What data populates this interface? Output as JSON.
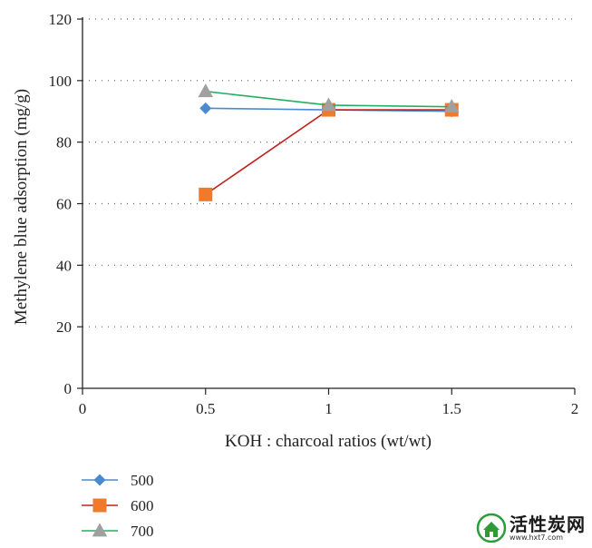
{
  "chart_data": {
    "type": "line",
    "title": "",
    "xlabel": "KOH : charcoal ratios (wt/wt)",
    "ylabel": "Methylene blue adsorption (mg/g)",
    "xlim": [
      0,
      2
    ],
    "ylim": [
      0,
      120
    ],
    "x_ticks": [
      "0",
      "0.5",
      "1",
      "1.5",
      "2"
    ],
    "y_ticks": [
      "0",
      "20",
      "40",
      "60",
      "80",
      "100",
      "120"
    ],
    "grid": "horizontal-dotted",
    "legend_position": "bottom-left",
    "x": [
      0.5,
      1,
      1.5
    ],
    "series": [
      {
        "name": "500",
        "values": [
          91,
          90.5,
          90
        ],
        "color": "#4a8bd0",
        "marker": "diamond"
      },
      {
        "name": "600",
        "values": [
          63,
          90.5,
          90.5
        ],
        "color": "#c42020",
        "marker_color": "#f07a2a",
        "marker": "square"
      },
      {
        "name": "700",
        "values": [
          96.5,
          92,
          91.5
        ],
        "color": "#22b060",
        "marker_color": "#a0a0a0",
        "marker": "triangle"
      }
    ]
  },
  "watermark": {
    "text": "活性炭网",
    "url": "www.hxt7.com",
    "logo": "house-leaf-logo-icon"
  }
}
